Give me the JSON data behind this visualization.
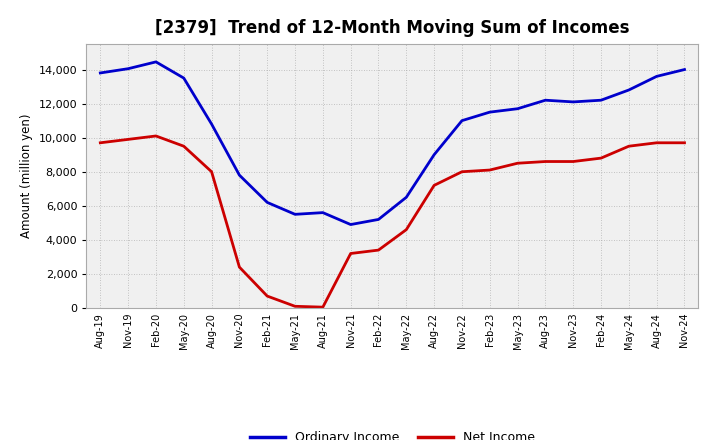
{
  "title": "[2379]  Trend of 12-Month Moving Sum of Incomes",
  "ylabel": "Amount (million yen)",
  "x_labels": [
    "Aug-19",
    "Nov-19",
    "Feb-20",
    "May-20",
    "Aug-20",
    "Nov-20",
    "Feb-21",
    "May-21",
    "Aug-21",
    "Nov-21",
    "Feb-22",
    "May-22",
    "Aug-22",
    "Nov-22",
    "Feb-23",
    "May-23",
    "Aug-23",
    "Nov-23",
    "Feb-24",
    "May-24",
    "Aug-24",
    "Nov-24"
  ],
  "ordinary_income": [
    13800,
    14050,
    14450,
    13500,
    10800,
    7800,
    6200,
    5500,
    5600,
    4900,
    5200,
    6500,
    9000,
    11000,
    11500,
    11700,
    12200,
    12100,
    12200,
    12800,
    13600,
    14000
  ],
  "net_income": [
    9700,
    9900,
    10100,
    9500,
    8000,
    2400,
    700,
    100,
    50,
    3200,
    3400,
    4600,
    7200,
    8000,
    8100,
    8500,
    8600,
    8600,
    8800,
    9500,
    9700,
    9700
  ],
  "ordinary_color": "#0000cc",
  "net_color": "#cc0000",
  "ylim_min": 0,
  "ylim_max": 15500,
  "yticks": [
    0,
    2000,
    4000,
    6000,
    8000,
    10000,
    12000,
    14000
  ],
  "bg_color": "#ffffff",
  "plot_bg_color": "#f0f0f0",
  "grid_color": "#999999",
  "title_fontsize": 12,
  "legend_labels": [
    "Ordinary Income",
    "Net Income"
  ]
}
